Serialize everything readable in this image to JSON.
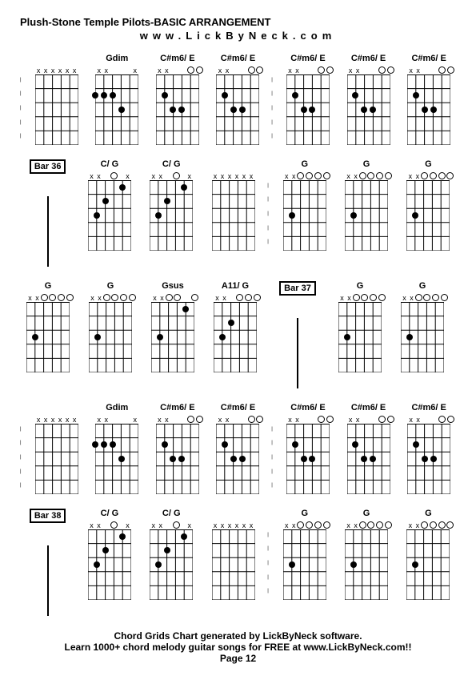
{
  "title": "Plush-Stone Temple Pilots-BASIC ARRANGEMENT",
  "subtitle": "www.LickByNeck.com",
  "footer_line1": "Chord Grids Chart generated by LickByNeck software.",
  "footer_line2": "Learn 1000+ chord melody guitar songs for FREE at www.LickByNeck.com!!",
  "page_label": "Page 12",
  "grid": {
    "strings": 6,
    "frets": 5,
    "width": 54,
    "height": 88,
    "color": "#000000"
  },
  "rows": [
    {
      "cells": [
        {
          "type": "dashes"
        },
        {
          "type": "chord",
          "label": "",
          "markers": [
            "x",
            "x",
            "x",
            "x",
            "x",
            "x"
          ],
          "dots": []
        },
        {
          "type": "chord",
          "label": "Gdim",
          "markers": [
            "x",
            "x",
            "",
            "",
            "",
            "x"
          ],
          "dots": [
            {
              "s": 3,
              "f": 2
            },
            {
              "s": 4,
              "f": 3
            },
            {
              "s": 1,
              "f": 2
            },
            {
              "s": 2,
              "f": 2
            }
          ],
          "opens": []
        },
        {
          "type": "chord",
          "label": "C#m6/ E",
          "markers": [
            "x",
            "x",
            "",
            "",
            "",
            ""
          ],
          "dots": [
            {
              "s": 2,
              "f": 2
            },
            {
              "s": 3,
              "f": 3
            },
            {
              "s": 4,
              "f": 3
            }
          ],
          "opens": [
            5,
            6
          ]
        },
        {
          "type": "chord",
          "label": "C#m6/ E",
          "markers": [
            "x",
            "x",
            "",
            "",
            "",
            ""
          ],
          "dots": [
            {
              "s": 2,
              "f": 2
            },
            {
              "s": 3,
              "f": 3
            },
            {
              "s": 4,
              "f": 3
            }
          ],
          "opens": [
            5,
            6
          ]
        },
        {
          "type": "dashes"
        },
        {
          "type": "chord",
          "label": "C#m6/ E",
          "markers": [
            "x",
            "x",
            "",
            "",
            "",
            ""
          ],
          "dots": [
            {
              "s": 2,
              "f": 2
            },
            {
              "s": 3,
              "f": 3
            },
            {
              "s": 4,
              "f": 3
            }
          ],
          "opens": [
            5,
            6
          ]
        },
        {
          "type": "chord",
          "label": "C#m6/ E",
          "markers": [
            "x",
            "x",
            "",
            "",
            "",
            ""
          ],
          "dots": [
            {
              "s": 2,
              "f": 2
            },
            {
              "s": 3,
              "f": 3
            },
            {
              "s": 4,
              "f": 3
            }
          ],
          "opens": [
            5,
            6
          ]
        },
        {
          "type": "chord",
          "label": "C#m6/ E",
          "markers": [
            "x",
            "x",
            "",
            "",
            "",
            ""
          ],
          "dots": [
            {
              "s": 2,
              "f": 2
            },
            {
              "s": 3,
              "f": 3
            },
            {
              "s": 4,
              "f": 3
            }
          ],
          "opens": [
            5,
            6
          ]
        }
      ]
    },
    {
      "cells": [
        {
          "type": "bar",
          "label": "Bar 36"
        },
        {
          "type": "chord",
          "label": "C/ G",
          "markers": [
            "x",
            "x",
            "",
            "",
            "",
            "x"
          ],
          "dots": [
            {
              "s": 2,
              "f": 3
            },
            {
              "s": 3,
              "f": 2
            },
            {
              "s": 5,
              "f": 1
            }
          ],
          "opens": [
            4
          ]
        },
        {
          "type": "chord",
          "label": "C/ G",
          "markers": [
            "x",
            "x",
            "",
            "",
            "",
            "x"
          ],
          "dots": [
            {
              "s": 2,
              "f": 3
            },
            {
              "s": 3,
              "f": 2
            },
            {
              "s": 5,
              "f": 1
            }
          ],
          "opens": [
            4
          ]
        },
        {
          "type": "chord",
          "label": "",
          "markers": [
            "x",
            "x",
            "x",
            "x",
            "x",
            "x"
          ],
          "dots": []
        },
        {
          "type": "dashes"
        },
        {
          "type": "chord",
          "label": "G",
          "markers": [
            "x",
            "x",
            "",
            "",
            "",
            ""
          ],
          "dots": [
            {
              "s": 2,
              "f": 3
            }
          ],
          "opens": [
            3,
            4,
            5,
            6
          ]
        },
        {
          "type": "chord",
          "label": "G",
          "markers": [
            "x",
            "x",
            "",
            "",
            "",
            ""
          ],
          "dots": [
            {
              "s": 2,
              "f": 3
            }
          ],
          "opens": [
            3,
            4,
            5,
            6
          ]
        },
        {
          "type": "chord",
          "label": "G",
          "markers": [
            "x",
            "x",
            "",
            "",
            "",
            ""
          ],
          "dots": [
            {
              "s": 2,
              "f": 3
            }
          ],
          "opens": [
            3,
            4,
            5,
            6
          ]
        }
      ]
    },
    {
      "cells": [
        {
          "type": "chord",
          "label": "G",
          "markers": [
            "x",
            "x",
            "",
            "",
            "",
            ""
          ],
          "dots": [
            {
              "s": 2,
              "f": 3
            }
          ],
          "opens": [
            3,
            4,
            5,
            6
          ]
        },
        {
          "type": "chord",
          "label": "G",
          "markers": [
            "x",
            "x",
            "",
            "",
            "",
            ""
          ],
          "dots": [
            {
              "s": 2,
              "f": 3
            }
          ],
          "opens": [
            3,
            4,
            5,
            6
          ]
        },
        {
          "type": "chord",
          "label": "Gsus",
          "markers": [
            "x",
            "x",
            "",
            "",
            "",
            ""
          ],
          "dots": [
            {
              "s": 2,
              "f": 3
            },
            {
              "s": 5,
              "f": 1
            }
          ],
          "opens": [
            3,
            4,
            6
          ]
        },
        {
          "type": "chord",
          "label": "A11/ G",
          "markers": [
            "x",
            "x",
            "",
            "",
            "",
            ""
          ],
          "dots": [
            {
              "s": 2,
              "f": 3
            },
            {
              "s": 3,
              "f": 2
            }
          ],
          "opens": [
            4,
            5,
            6
          ]
        },
        {
          "type": "bar",
          "label": "Bar 37"
        },
        {
          "type": "chord",
          "label": "G",
          "markers": [
            "x",
            "x",
            "",
            "",
            "",
            ""
          ],
          "dots": [
            {
              "s": 2,
              "f": 3
            }
          ],
          "opens": [
            3,
            4,
            5,
            6
          ]
        },
        {
          "type": "chord",
          "label": "G",
          "markers": [
            "x",
            "x",
            "",
            "",
            "",
            ""
          ],
          "dots": [
            {
              "s": 2,
              "f": 3
            }
          ],
          "opens": [
            3,
            4,
            5,
            6
          ]
        }
      ]
    },
    {
      "cells": [
        {
          "type": "dashes"
        },
        {
          "type": "chord",
          "label": "",
          "markers": [
            "x",
            "x",
            "x",
            "x",
            "x",
            "x"
          ],
          "dots": []
        },
        {
          "type": "chord",
          "label": "Gdim",
          "markers": [
            "x",
            "x",
            "",
            "",
            "",
            "x"
          ],
          "dots": [
            {
              "s": 3,
              "f": 2
            },
            {
              "s": 4,
              "f": 3
            },
            {
              "s": 1,
              "f": 2
            },
            {
              "s": 2,
              "f": 2
            }
          ],
          "opens": []
        },
        {
          "type": "chord",
          "label": "C#m6/ E",
          "markers": [
            "x",
            "x",
            "",
            "",
            "",
            ""
          ],
          "dots": [
            {
              "s": 2,
              "f": 2
            },
            {
              "s": 3,
              "f": 3
            },
            {
              "s": 4,
              "f": 3
            }
          ],
          "opens": [
            5,
            6
          ]
        },
        {
          "type": "chord",
          "label": "C#m6/ E",
          "markers": [
            "x",
            "x",
            "",
            "",
            "",
            ""
          ],
          "dots": [
            {
              "s": 2,
              "f": 2
            },
            {
              "s": 3,
              "f": 3
            },
            {
              "s": 4,
              "f": 3
            }
          ],
          "opens": [
            5,
            6
          ]
        },
        {
          "type": "dashes"
        },
        {
          "type": "chord",
          "label": "C#m6/ E",
          "markers": [
            "x",
            "x",
            "",
            "",
            "",
            ""
          ],
          "dots": [
            {
              "s": 2,
              "f": 2
            },
            {
              "s": 3,
              "f": 3
            },
            {
              "s": 4,
              "f": 3
            }
          ],
          "opens": [
            5,
            6
          ]
        },
        {
          "type": "chord",
          "label": "C#m6/ E",
          "markers": [
            "x",
            "x",
            "",
            "",
            "",
            ""
          ],
          "dots": [
            {
              "s": 2,
              "f": 2
            },
            {
              "s": 3,
              "f": 3
            },
            {
              "s": 4,
              "f": 3
            }
          ],
          "opens": [
            5,
            6
          ]
        },
        {
          "type": "chord",
          "label": "C#m6/ E",
          "markers": [
            "x",
            "x",
            "",
            "",
            "",
            ""
          ],
          "dots": [
            {
              "s": 2,
              "f": 2
            },
            {
              "s": 3,
              "f": 3
            },
            {
              "s": 4,
              "f": 3
            }
          ],
          "opens": [
            5,
            6
          ]
        }
      ]
    },
    {
      "cells": [
        {
          "type": "bar",
          "label": "Bar 38"
        },
        {
          "type": "chord",
          "label": "C/ G",
          "markers": [
            "x",
            "x",
            "",
            "",
            "",
            "x"
          ],
          "dots": [
            {
              "s": 2,
              "f": 3
            },
            {
              "s": 3,
              "f": 2
            },
            {
              "s": 5,
              "f": 1
            }
          ],
          "opens": [
            4
          ]
        },
        {
          "type": "chord",
          "label": "C/ G",
          "markers": [
            "x",
            "x",
            "",
            "",
            "",
            "x"
          ],
          "dots": [
            {
              "s": 2,
              "f": 3
            },
            {
              "s": 3,
              "f": 2
            },
            {
              "s": 5,
              "f": 1
            }
          ],
          "opens": [
            4
          ]
        },
        {
          "type": "chord",
          "label": "",
          "markers": [
            "x",
            "x",
            "x",
            "x",
            "x",
            "x"
          ],
          "dots": []
        },
        {
          "type": "dashes"
        },
        {
          "type": "chord",
          "label": "G",
          "markers": [
            "x",
            "x",
            "",
            "",
            "",
            ""
          ],
          "dots": [
            {
              "s": 2,
              "f": 3
            }
          ],
          "opens": [
            3,
            4,
            5,
            6
          ]
        },
        {
          "type": "chord",
          "label": "G",
          "markers": [
            "x",
            "x",
            "",
            "",
            "",
            ""
          ],
          "dots": [
            {
              "s": 2,
              "f": 3
            }
          ],
          "opens": [
            3,
            4,
            5,
            6
          ]
        },
        {
          "type": "chord",
          "label": "G",
          "markers": [
            "x",
            "x",
            "",
            "",
            "",
            ""
          ],
          "dots": [
            {
              "s": 2,
              "f": 3
            }
          ],
          "opens": [
            3,
            4,
            5,
            6
          ]
        }
      ]
    }
  ]
}
